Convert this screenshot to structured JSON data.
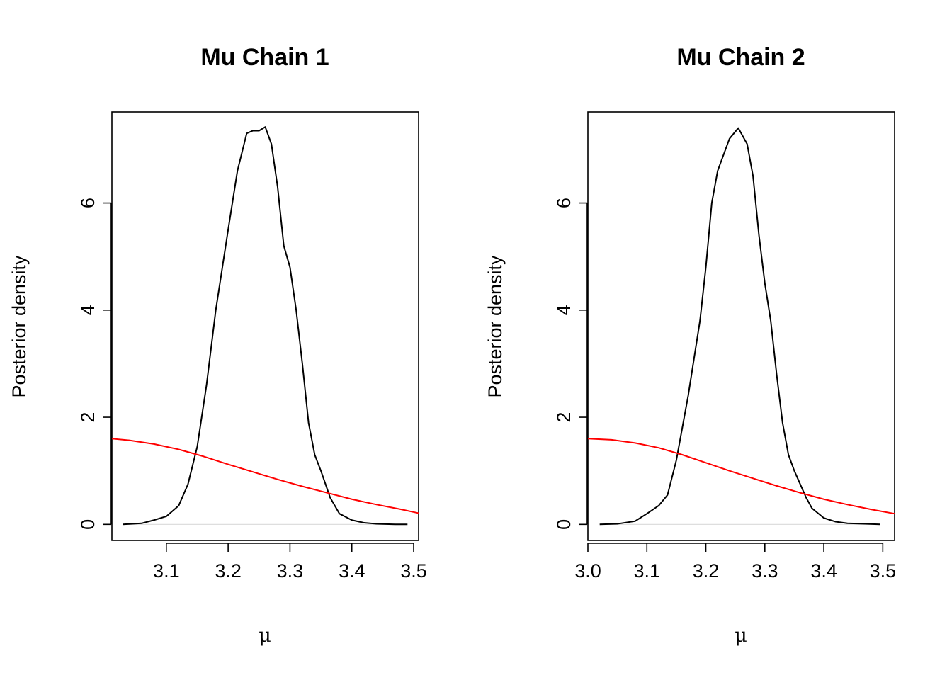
{
  "chart_data": [
    {
      "type": "line",
      "title": "Mu Chain 1",
      "xlabel": "μ",
      "ylabel": "Posterior density",
      "xlim": [
        3.012,
        3.508
      ],
      "ylim": [
        -0.3,
        7.7
      ],
      "xticks": [
        3.1,
        3.2,
        3.3,
        3.4,
        3.5
      ],
      "xtick_labels": [
        "3.1",
        "3.2",
        "3.3",
        "3.4",
        "3.5"
      ],
      "yticks": [
        0,
        2,
        4,
        6
      ],
      "ytick_labels": [
        "0",
        "2",
        "4",
        "6"
      ],
      "grid": false,
      "series": [
        {
          "color": "#000000",
          "x": [
            3.03,
            3.06,
            3.08,
            3.1,
            3.12,
            3.135,
            3.15,
            3.165,
            3.18,
            3.2,
            3.215,
            3.23,
            3.24,
            3.25,
            3.26,
            3.27,
            3.28,
            3.29,
            3.3,
            3.31,
            3.32,
            3.33,
            3.34,
            3.35,
            3.365,
            3.38,
            3.4,
            3.42,
            3.44,
            3.47,
            3.49
          ],
          "y": [
            0.0,
            0.02,
            0.08,
            0.15,
            0.35,
            0.75,
            1.45,
            2.6,
            4.0,
            5.5,
            6.6,
            7.3,
            7.35,
            7.35,
            7.42,
            7.1,
            6.3,
            5.2,
            4.8,
            4.0,
            3.0,
            1.9,
            1.3,
            1.0,
            0.5,
            0.2,
            0.08,
            0.03,
            0.01,
            0.0,
            0.0
          ]
        },
        {
          "color": "#ff0000",
          "x": [
            3.012,
            3.04,
            3.08,
            3.12,
            3.16,
            3.2,
            3.24,
            3.28,
            3.32,
            3.36,
            3.4,
            3.44,
            3.48,
            3.508
          ],
          "y": [
            1.6,
            1.57,
            1.5,
            1.4,
            1.27,
            1.12,
            0.98,
            0.84,
            0.71,
            0.59,
            0.47,
            0.37,
            0.28,
            0.21
          ]
        }
      ]
    },
    {
      "type": "line",
      "title": "Mu Chain 2",
      "xlabel": "μ",
      "ylabel": "Posterior density",
      "xlim": [
        3.0,
        3.52
      ],
      "ylim": [
        -0.3,
        7.7
      ],
      "xticks": [
        3.0,
        3.1,
        3.2,
        3.3,
        3.4,
        3.5
      ],
      "xtick_labels": [
        "3.0",
        "3.1",
        "3.2",
        "3.3",
        "3.4",
        "3.5"
      ],
      "yticks": [
        0,
        2,
        4,
        6
      ],
      "ytick_labels": [
        "0",
        "2",
        "4",
        "6"
      ],
      "grid": false,
      "series": [
        {
          "color": "#000000",
          "x": [
            3.02,
            3.05,
            3.08,
            3.1,
            3.12,
            3.135,
            3.15,
            3.17,
            3.19,
            3.2,
            3.21,
            3.22,
            3.24,
            3.255,
            3.27,
            3.28,
            3.29,
            3.3,
            3.31,
            3.32,
            3.33,
            3.34,
            3.35,
            3.37,
            3.38,
            3.4,
            3.42,
            3.44,
            3.47,
            3.495
          ],
          "y": [
            0.0,
            0.01,
            0.06,
            0.2,
            0.35,
            0.55,
            1.2,
            2.4,
            3.8,
            4.8,
            6.0,
            6.6,
            7.2,
            7.4,
            7.1,
            6.5,
            5.4,
            4.5,
            3.8,
            2.8,
            1.9,
            1.3,
            1.0,
            0.5,
            0.3,
            0.12,
            0.05,
            0.02,
            0.01,
            0.0
          ]
        },
        {
          "color": "#ff0000",
          "x": [
            3.0,
            3.04,
            3.08,
            3.12,
            3.16,
            3.2,
            3.24,
            3.28,
            3.32,
            3.36,
            3.4,
            3.44,
            3.48,
            3.52
          ],
          "y": [
            1.6,
            1.58,
            1.52,
            1.43,
            1.3,
            1.15,
            1.0,
            0.86,
            0.72,
            0.59,
            0.47,
            0.37,
            0.28,
            0.2
          ]
        }
      ]
    }
  ]
}
